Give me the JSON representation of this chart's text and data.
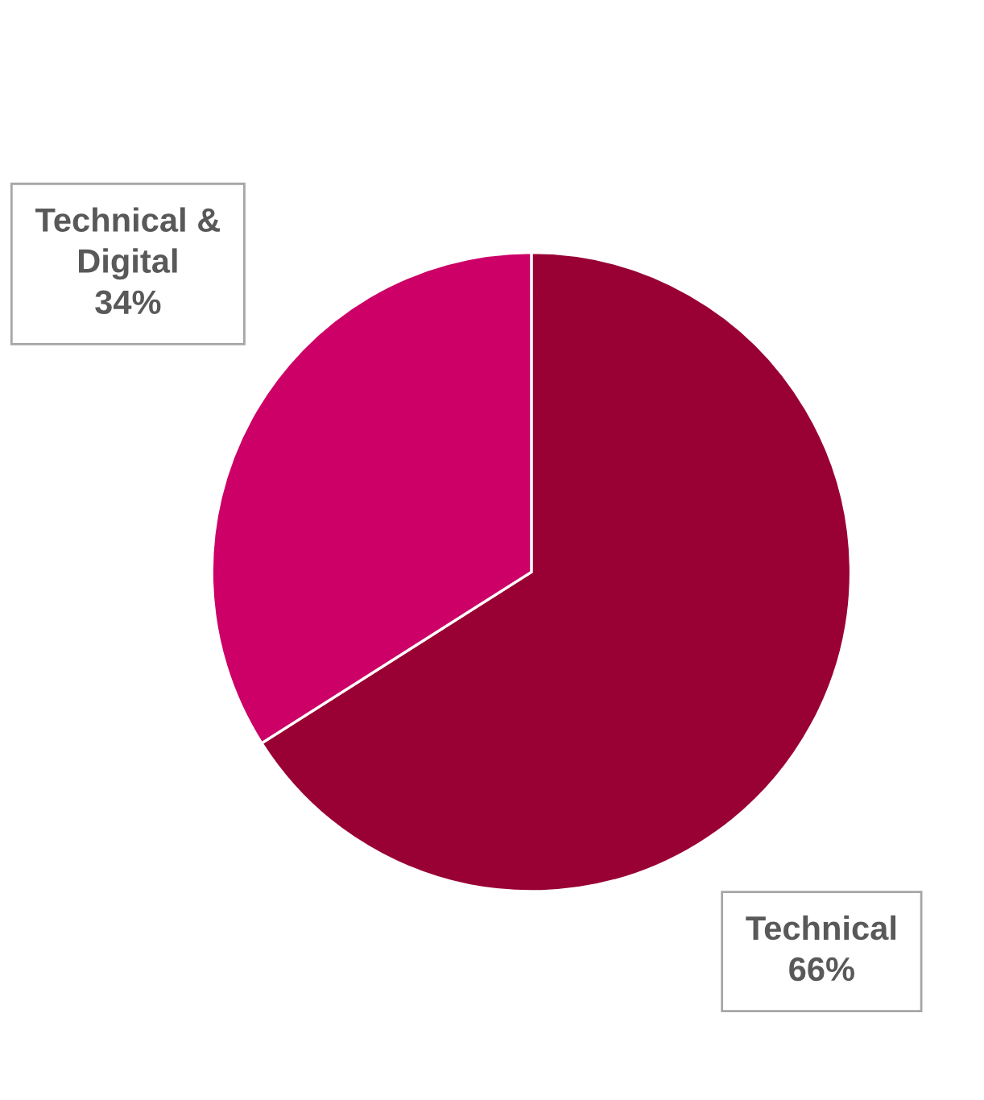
{
  "chart_data": {
    "type": "pie",
    "categories": [
      "Technical",
      "Technical & Digital"
    ],
    "values": [
      66,
      34
    ],
    "colors": [
      "#990033",
      "#cc0066"
    ],
    "value_labels": [
      "66%",
      "34%"
    ]
  }
}
